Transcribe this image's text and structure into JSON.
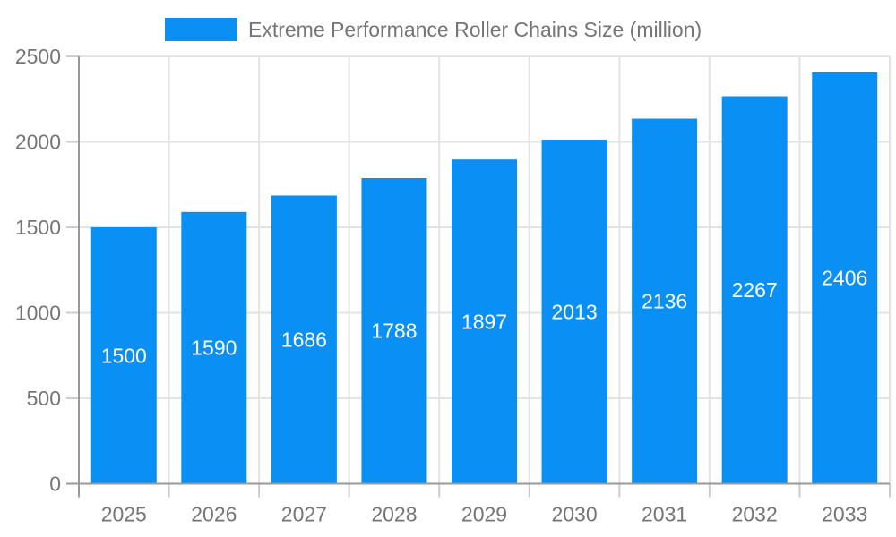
{
  "chart_data": {
    "type": "bar",
    "title": "Extreme Performance Roller Chains Size (million)",
    "categories": [
      "2025",
      "2026",
      "2027",
      "2028",
      "2029",
      "2030",
      "2031",
      "2032",
      "2033"
    ],
    "values": [
      1500,
      1590,
      1686,
      1788,
      1897,
      2013,
      2136,
      2267,
      2406
    ],
    "xlabel": "",
    "ylabel": "",
    "ylim": [
      0,
      2500
    ],
    "yticks": [
      0,
      500,
      1000,
      1500,
      2000,
      2500
    ],
    "grid": true,
    "legend_position": "top",
    "legend_label": "Extreme Performance Roller Chains Size (million)",
    "colors": {
      "bar": "#0a90f5",
      "bar_value_label": "#ffffff",
      "axis_text": "#757575",
      "grid_line": "#e3e3e3",
      "axis_line": "#999999",
      "tick_mark": "#cccccc"
    }
  }
}
